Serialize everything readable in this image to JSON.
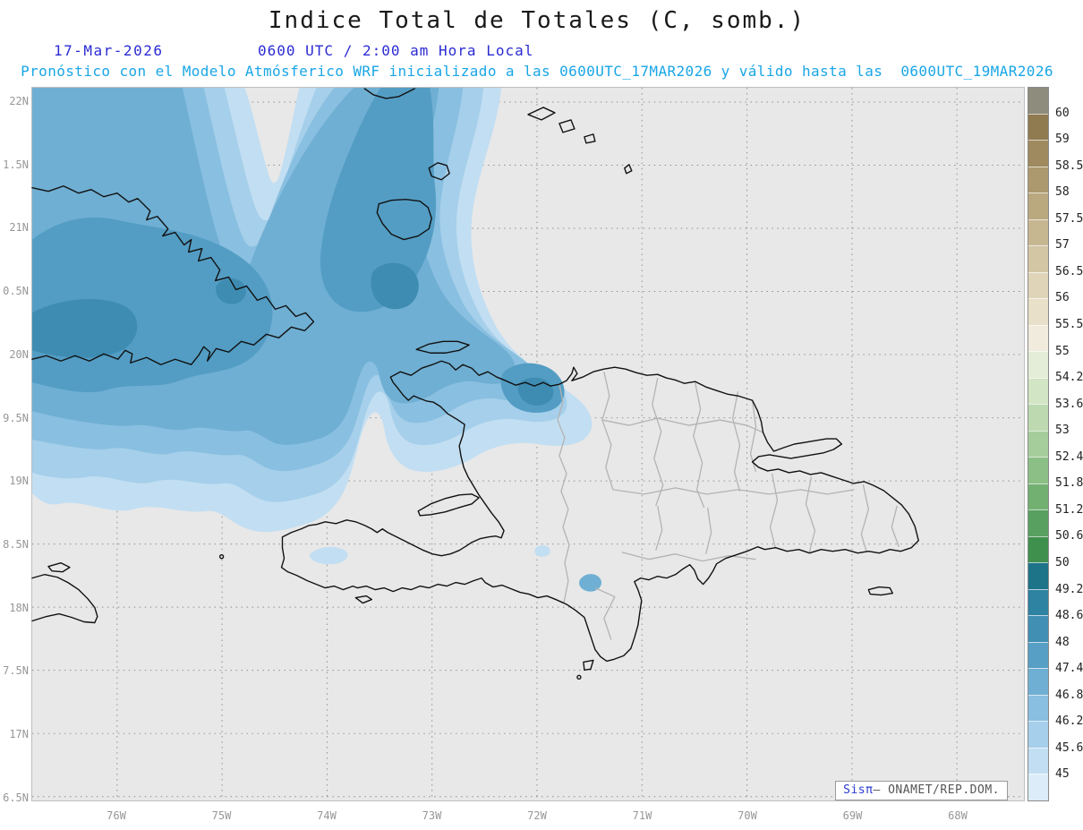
{
  "header": {
    "title": "Indice Total de Totales (C, somb.)",
    "date": "17-Mar-2026",
    "time": "0600 UTC / 2:00 am Hora Local",
    "subtitle": "Pronóstico con el Modelo Atmósferico WRF inicializado a las 0600UTC_17MAR2026 y válido hasta las  0600UTC_19MAR2026",
    "colors": {
      "title": "#1a1a1a",
      "date_time": "#2b2bd4",
      "subtitle": "#19a6e6"
    }
  },
  "map": {
    "background": "#e8e8e8",
    "gridline_color": "#8f8f8f",
    "coastline_color": "#111111",
    "province_line_color": "#b3b3b3",
    "lat_labels": [
      "22N",
      "1.5N",
      "21N",
      "0.5N",
      "20N",
      "9.5N",
      "19N",
      "8.5N",
      "18N",
      "7.5N",
      "17N",
      "6.5N"
    ],
    "lon_labels": [
      "76W",
      "75W",
      "74W",
      "73W",
      "72W",
      "71W",
      "70W",
      "69W",
      "68W"
    ],
    "band_colors": [
      "#c2def2",
      "#a5cfea",
      "#89bfe0",
      "#6fafd3",
      "#539dc4",
      "#3e8cb2"
    ]
  },
  "colorbar": {
    "labels": [
      "60",
      "59",
      "58.5",
      "58",
      "57.5",
      "57",
      "56.5",
      "56",
      "55.5",
      "55",
      "54.2",
      "53.6",
      "53",
      "52.4",
      "51.8",
      "51.2",
      "50.6",
      "50",
      "49.2",
      "48.6",
      "48",
      "47.4",
      "46.8",
      "46.2",
      "45.6",
      "45"
    ],
    "colors": [
      "#8e8c7c",
      "#907a50",
      "#9e8a5e",
      "#ac996e",
      "#baa87f",
      "#c7b791",
      "#d3c6a4",
      "#dfd4b7",
      "#e9e0c9",
      "#f0ebdc",
      "#e3edd8",
      "#d2e5c5",
      "#bcd9b0",
      "#a5cd9b",
      "#8cbf86",
      "#72b072",
      "#58a05f",
      "#3f904c",
      "#1d7387",
      "#2e82a2",
      "#4190b4",
      "#579fc4",
      "#6fafd3",
      "#89bfe0",
      "#a5cfea",
      "#c2def2",
      "#dcecf8"
    ]
  },
  "watermark": {
    "brand": "Sisπ",
    "text": "– ONAMET/REP.DOM."
  }
}
